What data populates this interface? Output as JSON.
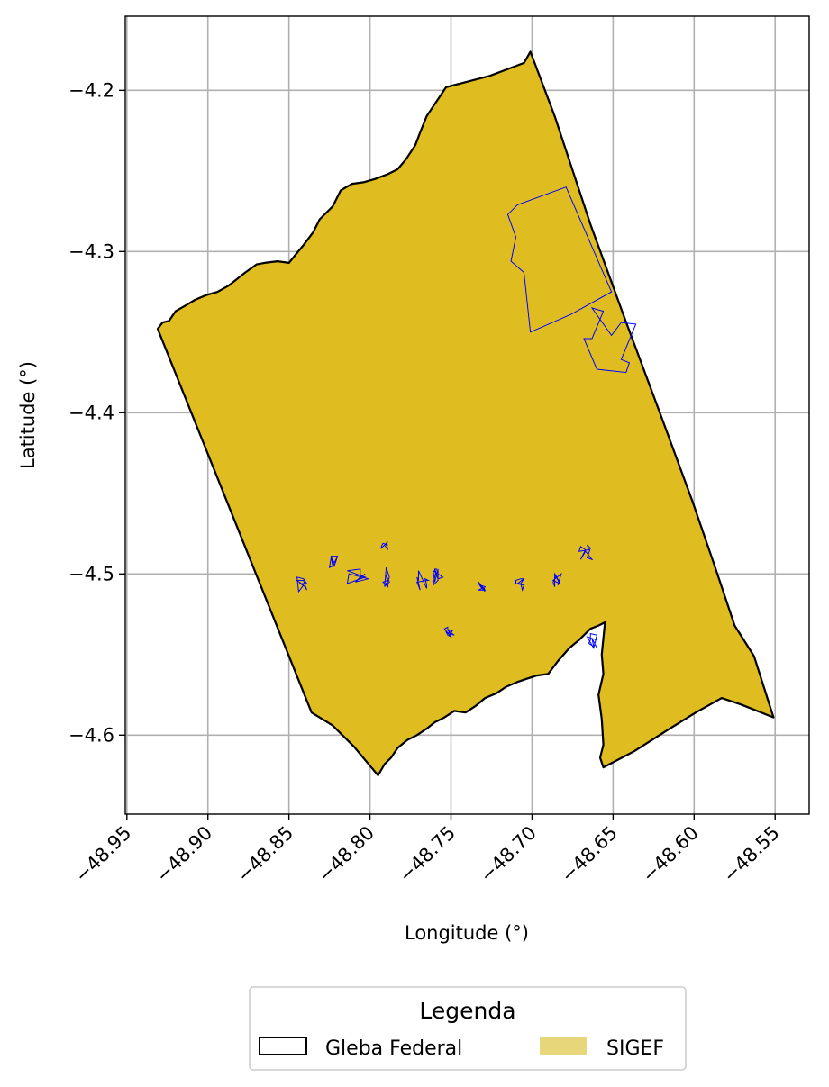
{
  "chart_data": {
    "type": "map",
    "xlabel": "Longitude (°)",
    "ylabel": "Latitude (°)",
    "xlim": [
      -48.951,
      -48.529
    ],
    "ylim": [
      -4.649,
      -4.154
    ],
    "xticks": [
      -48.95,
      -48.9,
      -48.85,
      -48.8,
      -48.75,
      -48.7,
      -48.65,
      -48.6,
      -48.55
    ],
    "xtick_labels": [
      "−48.95",
      "−48.90",
      "−48.85",
      "−48.80",
      "−48.75",
      "−48.70",
      "−48.65",
      "−48.60",
      "−48.55"
    ],
    "yticks": [
      -4.2,
      -4.3,
      -4.4,
      -4.5,
      -4.6
    ],
    "ytick_labels": [
      "−4.2",
      "−4.3",
      "−4.4",
      "−4.5",
      "−4.6"
    ],
    "grid": true,
    "gleba_outline": [
      [
        -48.931,
        -4.348
      ],
      [
        -48.928,
        -4.344
      ],
      [
        -48.924,
        -4.343
      ],
      [
        -48.92,
        -4.337
      ],
      [
        -48.913,
        -4.333
      ],
      [
        -48.908,
        -4.33
      ],
      [
        -48.901,
        -4.327
      ],
      [
        -48.894,
        -4.325
      ],
      [
        -48.887,
        -4.321
      ],
      [
        -48.877,
        -4.313
      ],
      [
        -48.87,
        -4.308
      ],
      [
        -48.865,
        -4.307
      ],
      [
        -48.857,
        -4.306
      ],
      [
        -48.85,
        -4.307
      ],
      [
        -48.846,
        -4.302
      ],
      [
        -48.841,
        -4.296
      ],
      [
        -48.835,
        -4.288
      ],
      [
        -48.831,
        -4.28
      ],
      [
        -48.823,
        -4.272
      ],
      [
        -48.818,
        -4.262
      ],
      [
        -48.811,
        -4.258
      ],
      [
        -48.804,
        -4.257
      ],
      [
        -48.797,
        -4.255
      ],
      [
        -48.789,
        -4.252
      ],
      [
        -48.783,
        -4.249
      ],
      [
        -48.778,
        -4.243
      ],
      [
        -48.772,
        -4.234
      ],
      [
        -48.769,
        -4.226
      ],
      [
        -48.765,
        -4.216
      ],
      [
        -48.761,
        -4.21
      ],
      [
        -48.757,
        -4.204
      ],
      [
        -48.753,
        -4.198
      ],
      [
        -48.726,
        -4.191
      ],
      [
        -48.705,
        -4.183
      ],
      [
        -48.701,
        -4.176
      ],
      [
        -48.686,
        -4.216
      ],
      [
        -48.664,
        -4.283
      ],
      [
        -48.643,
        -4.341
      ],
      [
        -48.62,
        -4.403
      ],
      [
        -48.601,
        -4.455
      ],
      [
        -48.588,
        -4.493
      ],
      [
        -48.575,
        -4.532
      ],
      [
        -48.563,
        -4.551
      ],
      [
        -48.551,
        -4.589
      ],
      [
        -48.571,
        -4.581
      ],
      [
        -48.583,
        -4.577
      ],
      [
        -48.599,
        -4.586
      ],
      [
        -48.615,
        -4.596
      ],
      [
        -48.637,
        -4.61
      ],
      [
        -48.656,
        -4.62
      ],
      [
        -48.658,
        -4.614
      ],
      [
        -48.656,
        -4.606
      ],
      [
        -48.657,
        -4.59
      ],
      [
        -48.659,
        -4.575
      ],
      [
        -48.656,
        -4.562
      ],
      [
        -48.657,
        -4.55
      ],
      [
        -48.655,
        -4.53
      ],
      [
        -48.659,
        -4.532
      ],
      [
        -48.664,
        -4.534
      ],
      [
        -48.671,
        -4.541
      ],
      [
        -48.677,
        -4.546
      ],
      [
        -48.684,
        -4.554
      ],
      [
        -48.69,
        -4.562
      ],
      [
        -48.697,
        -4.563
      ],
      [
        -48.703,
        -4.565
      ],
      [
        -48.709,
        -4.567
      ],
      [
        -48.716,
        -4.57
      ],
      [
        -48.722,
        -4.574
      ],
      [
        -48.729,
        -4.577
      ],
      [
        -48.735,
        -4.582
      ],
      [
        -48.741,
        -4.586
      ],
      [
        -48.748,
        -4.585
      ],
      [
        -48.754,
        -4.589
      ],
      [
        -48.76,
        -4.592
      ],
      [
        -48.765,
        -4.596
      ],
      [
        -48.771,
        -4.6
      ],
      [
        -48.777,
        -4.603
      ],
      [
        -48.783,
        -4.608
      ],
      [
        -48.787,
        -4.614
      ],
      [
        -48.791,
        -4.618
      ],
      [
        -48.795,
        -4.625
      ],
      [
        -48.8,
        -4.619
      ],
      [
        -48.81,
        -4.607
      ],
      [
        -48.823,
        -4.594
      ],
      [
        -48.836,
        -4.586
      ],
      [
        -48.931,
        -4.348
      ]
    ],
    "sigef_parcels": [
      [
        [
          -48.679,
          -4.26
        ],
        [
          -48.709,
          -4.271
        ],
        [
          -48.715,
          -4.277
        ],
        [
          -48.71,
          -4.291
        ],
        [
          -48.713,
          -4.306
        ],
        [
          -48.705,
          -4.313
        ],
        [
          -48.701,
          -4.35
        ],
        [
          -48.676,
          -4.339
        ],
        [
          -48.651,
          -4.325
        ]
      ],
      [
        [
          -48.656,
          -4.337
        ],
        [
          -48.663,
          -4.335
        ],
        [
          -48.651,
          -4.352
        ],
        [
          -48.645,
          -4.344
        ],
        [
          -48.636,
          -4.345
        ],
        [
          -48.645,
          -4.367
        ],
        [
          -48.64,
          -4.369
        ],
        [
          -48.642,
          -4.375
        ],
        [
          -48.66,
          -4.373
        ],
        [
          -48.668,
          -4.354
        ],
        [
          -48.663,
          -4.354
        ]
      ],
      [
        [
          -48.803,
          -4.5
        ],
        [
          -48.809,
          -4.505
        ],
        [
          -48.801,
          -4.503
        ],
        [
          -48.813,
          -4.5
        ],
        [
          -48.814,
          -4.506
        ],
        [
          -48.803,
          -4.502
        ],
        [
          -48.814,
          -4.498
        ],
        [
          -48.806,
          -4.497
        ],
        [
          -48.806,
          -4.502
        ],
        [
          -48.808,
          -4.504
        ]
      ],
      [
        [
          -48.79,
          -4.507
        ],
        [
          -48.788,
          -4.502
        ],
        [
          -48.79,
          -4.496
        ],
        [
          -48.791,
          -4.508
        ],
        [
          -48.789,
          -4.504
        ],
        [
          -48.792,
          -4.505
        ],
        [
          -48.789,
          -4.508
        ],
        [
          -48.789,
          -4.506
        ],
        [
          -48.79,
          -4.501
        ],
        [
          -48.788,
          -4.505
        ]
      ],
      [
        [
          -48.77,
          -4.504
        ],
        [
          -48.77,
          -4.504
        ],
        [
          -48.77,
          -4.498
        ],
        [
          -48.765,
          -4.509
        ],
        [
          -48.765,
          -4.507
        ],
        [
          -48.766,
          -4.503
        ],
        [
          -48.764,
          -4.504
        ],
        [
          -48.771,
          -4.505
        ],
        [
          -48.769,
          -4.51
        ],
        [
          -48.771,
          -4.502
        ]
      ],
      [
        [
          -48.755,
          -4.502
        ],
        [
          -48.758,
          -4.503
        ],
        [
          -48.76,
          -4.498
        ],
        [
          -48.76,
          -4.497
        ],
        [
          -48.759,
          -4.497
        ],
        [
          -48.761,
          -4.507
        ],
        [
          -48.758,
          -4.504
        ],
        [
          -48.758,
          -4.497
        ],
        [
          -48.76,
          -4.505
        ],
        [
          -48.761,
          -4.498
        ]
      ],
      [
        [
          -48.71,
          -4.506
        ],
        [
          -48.71,
          -4.504
        ],
        [
          -48.707,
          -4.503
        ],
        [
          -48.705,
          -4.503
        ],
        [
          -48.707,
          -4.506
        ],
        [
          -48.705,
          -4.503
        ],
        [
          -48.709,
          -4.506
        ],
        [
          -48.707,
          -4.506
        ],
        [
          -48.706,
          -4.51
        ],
        [
          -48.705,
          -4.507
        ]
      ],
      [
        [
          -48.662,
          -4.546
        ],
        [
          -48.666,
          -4.539
        ],
        [
          -48.66,
          -4.541
        ],
        [
          -48.66,
          -4.546
        ],
        [
          -48.663,
          -4.54
        ],
        [
          -48.662,
          -4.545
        ],
        [
          -48.665,
          -4.543
        ],
        [
          -48.664,
          -4.541
        ],
        [
          -48.664,
          -4.537
        ],
        [
          -48.66,
          -4.538
        ]
      ],
      [
        [
          -48.667,
          -4.485
        ],
        [
          -48.67,
          -4.491
        ],
        [
          -48.667,
          -4.486
        ],
        [
          -48.663,
          -4.491
        ],
        [
          -48.666,
          -4.49
        ],
        [
          -48.664,
          -4.484
        ],
        [
          -48.666,
          -4.482
        ],
        [
          -48.665,
          -4.485
        ],
        [
          -48.671,
          -4.486
        ],
        [
          -48.67,
          -4.483
        ]
      ],
      [
        [
          -48.825,
          -4.496
        ],
        [
          -48.824,
          -4.49
        ],
        [
          -48.822,
          -4.493
        ],
        [
          -48.82,
          -4.489
        ],
        [
          -48.823,
          -4.489
        ],
        [
          -48.823,
          -4.492
        ],
        [
          -48.822,
          -4.495
        ],
        [
          -48.82,
          -4.489
        ],
        [
          -48.824,
          -4.489
        ],
        [
          -48.823,
          -4.495
        ]
      ],
      [
        [
          -48.844,
          -4.511
        ],
        [
          -48.841,
          -4.507
        ],
        [
          -48.845,
          -4.504
        ],
        [
          -48.841,
          -4.504
        ],
        [
          -48.839,
          -4.51
        ],
        [
          -48.84,
          -4.508
        ],
        [
          -48.843,
          -4.506
        ],
        [
          -48.839,
          -4.506
        ],
        [
          -48.841,
          -4.503
        ],
        [
          -48.845,
          -4.502
        ]
      ],
      [
        [
          -48.75,
          -4.539
        ],
        [
          -48.752,
          -4.534
        ],
        [
          -48.752,
          -4.533
        ],
        [
          -48.754,
          -4.534
        ],
        [
          -48.751,
          -4.538
        ],
        [
          -48.749,
          -4.535
        ],
        [
          -48.752,
          -4.535
        ],
        [
          -48.748,
          -4.538
        ],
        [
          -48.753,
          -4.536
        ],
        [
          -48.752,
          -4.538
        ]
      ],
      [
        [
          -48.733,
          -4.51
        ],
        [
          -48.733,
          -4.51
        ],
        [
          -48.731,
          -4.509
        ],
        [
          -48.733,
          -4.506
        ],
        [
          -48.73,
          -4.51
        ],
        [
          -48.729,
          -4.508
        ],
        [
          -48.732,
          -4.507
        ],
        [
          -48.729,
          -4.511
        ],
        [
          -48.733,
          -4.505
        ],
        [
          -48.729,
          -4.51
        ]
      ],
      [
        [
          -48.684,
          -4.507
        ],
        [
          -48.682,
          -4.5
        ],
        [
          -48.687,
          -4.504
        ],
        [
          -48.683,
          -4.506
        ],
        [
          -48.686,
          -4.5
        ],
        [
          -48.685,
          -4.501
        ],
        [
          -48.687,
          -4.505
        ],
        [
          -48.686,
          -4.508
        ],
        [
          -48.686,
          -4.5
        ],
        [
          -48.683,
          -4.505
        ]
      ],
      [
        [
          -48.79,
          -4.481
        ],
        [
          -48.789,
          -4.485
        ],
        [
          -48.791,
          -4.482
        ],
        [
          -48.789,
          -4.48
        ],
        [
          -48.791,
          -4.482
        ],
        [
          -48.793,
          -4.484
        ],
        [
          -48.793,
          -4.483
        ],
        [
          -48.792,
          -4.481
        ],
        [
          -48.789,
          -4.482
        ],
        [
          -48.79,
          -4.482
        ]
      ]
    ],
    "legend": {
      "title": "Legenda",
      "placement": "bottom-center",
      "entries": [
        {
          "label": "Gleba Federal",
          "style": "outline",
          "color": "#000000"
        },
        {
          "label": "SIGEF",
          "style": "fill",
          "color": "#e8d77a"
        }
      ]
    },
    "colors": {
      "gleba_fill": "#dfbd20",
      "gleba_edge": "#000000",
      "sigef_edge": "#0000ff",
      "grid": "#b0b0b0"
    }
  }
}
